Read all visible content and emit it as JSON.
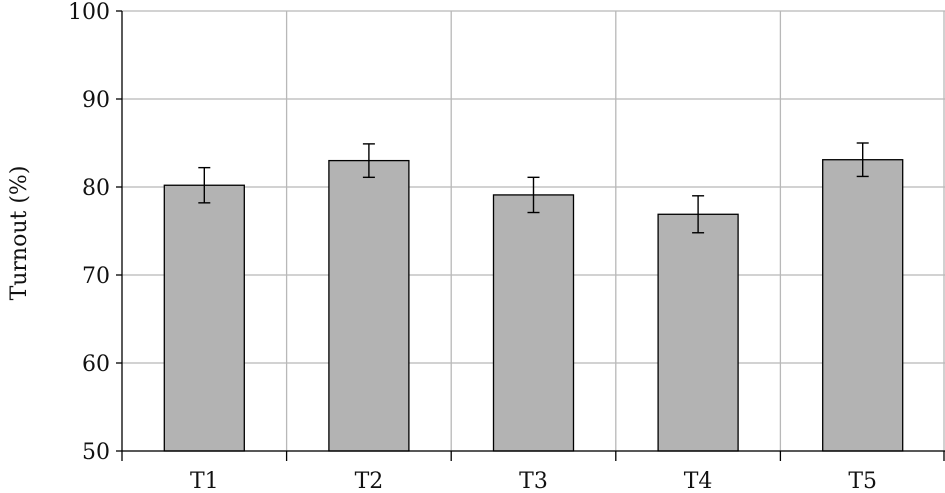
{
  "chart_data": {
    "type": "bar",
    "categories": [
      "T1",
      "T2",
      "T3",
      "T4",
      "T5"
    ],
    "series": [
      {
        "values": [
          80.2,
          83.0,
          79.1,
          76.9,
          83.1
        ],
        "error": [
          2.0,
          1.9,
          2.0,
          2.1,
          1.9
        ]
      }
    ],
    "xlabel": "",
    "ylabel": "Turnout (%)",
    "ylim": [
      50,
      100
    ],
    "yticks": [
      50,
      60,
      70,
      80,
      90,
      100
    ],
    "grid": true,
    "colors": {
      "bar": "#b3b3b3",
      "bar_stroke": "#000000",
      "grid": "#b8b8b8",
      "axis": "#000000"
    }
  }
}
